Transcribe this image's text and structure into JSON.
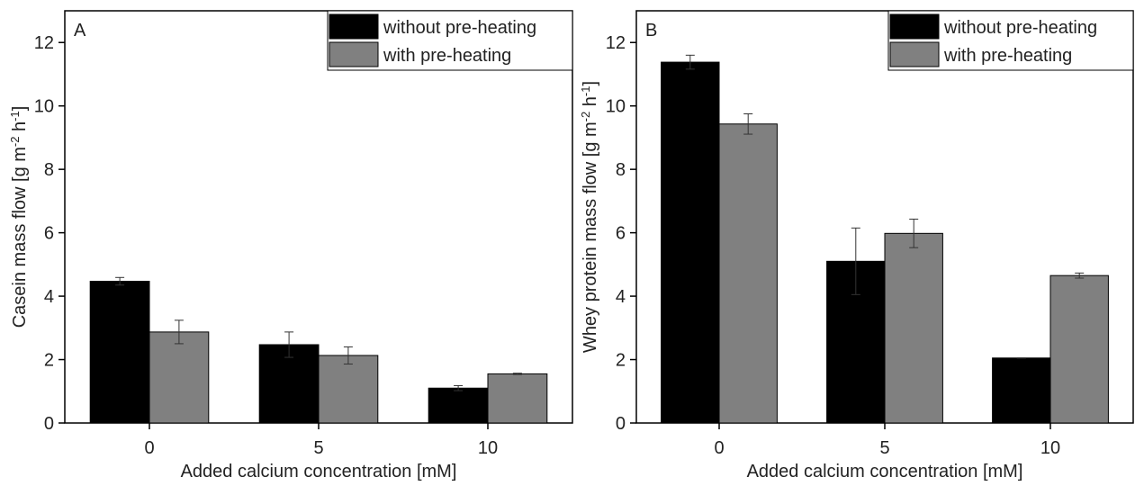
{
  "chart_data": [
    {
      "type": "bar",
      "panel_label": "A",
      "xlabel": "Added calcium concentration [mM]",
      "ylabel": [
        "Casein mass flow [g m",
        "-2",
        " h",
        "-1",
        "]"
      ],
      "categories": [
        "0",
        "5",
        "10"
      ],
      "series": [
        {
          "name": "without pre-heating",
          "color": "#000000",
          "values": [
            4.47,
            2.47,
            1.1
          ],
          "errors": [
            0.12,
            0.4,
            0.08
          ]
        },
        {
          "name": "with pre-heating",
          "color": "#808080",
          "values": [
            2.87,
            2.13,
            1.55
          ],
          "errors": [
            0.37,
            0.27,
            0.02
          ]
        }
      ],
      "ylim": [
        0,
        13
      ],
      "yticks": [
        0,
        2,
        4,
        6,
        8,
        10,
        12
      ],
      "legend": "upper right"
    },
    {
      "type": "bar",
      "panel_label": "B",
      "xlabel": "Added calcium concentration [mM]",
      "ylabel": [
        "Whey protein mass flow [g m",
        "-2",
        " h",
        "-1",
        "]"
      ],
      "categories": [
        "0",
        "5",
        "10"
      ],
      "series": [
        {
          "name": "without pre-heating",
          "color": "#000000",
          "values": [
            11.38,
            5.1,
            2.05
          ],
          "errors": [
            0.22,
            1.05,
            0
          ]
        },
        {
          "name": "with pre-heating",
          "color": "#808080",
          "values": [
            9.43,
            5.98,
            4.65
          ],
          "errors": [
            0.32,
            0.45,
            0.08
          ]
        }
      ],
      "ylim": [
        0,
        13
      ],
      "yticks": [
        0,
        2,
        4,
        6,
        8,
        10,
        12
      ],
      "legend": "upper right"
    }
  ]
}
